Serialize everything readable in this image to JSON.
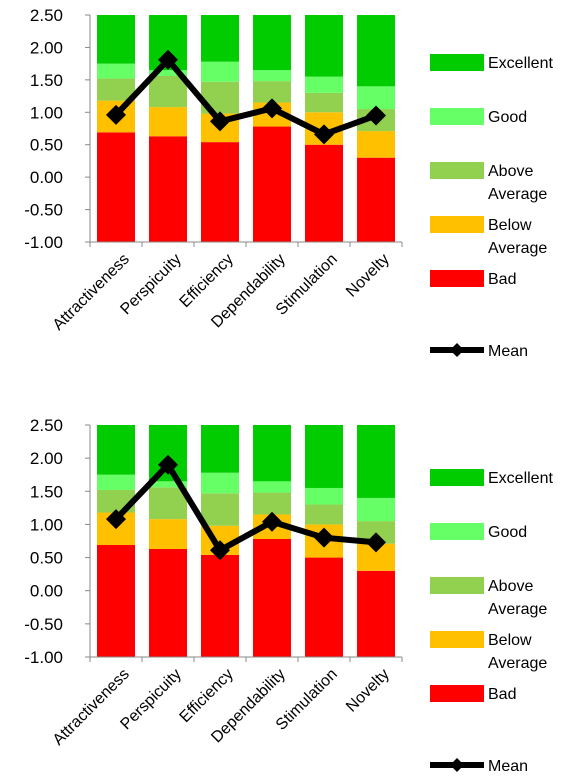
{
  "chart_data": [
    {
      "type": "bar",
      "subtype": "stacked-bar-with-line",
      "categories": [
        "Attractiveness",
        "Perspicuity",
        "Efficiency",
        "Dependability",
        "Stimulation",
        "Novelty"
      ],
      "ylim": [
        -1.0,
        2.5
      ],
      "yticks": [
        "2.50",
        "2.00",
        "1.50",
        "1.00",
        "0.50",
        "0.00",
        "-0.50",
        "-1.00"
      ],
      "grid": false,
      "legend_position": "right",
      "bands": [
        {
          "name": "Bad",
          "color": "#ff0000",
          "tops": [
            0.69,
            0.63,
            0.54,
            0.78,
            0.5,
            0.3
          ]
        },
        {
          "name": "Below Average",
          "label_lines": [
            "Below",
            "Average"
          ],
          "color": "#ffc000",
          "tops": [
            1.18,
            1.08,
            0.98,
            1.15,
            1.0,
            0.71
          ]
        },
        {
          "name": "Above Average",
          "label_lines": [
            "Above",
            "Average"
          ],
          "color": "#92d050",
          "tops": [
            1.52,
            1.56,
            1.47,
            1.48,
            1.3,
            1.05
          ]
        },
        {
          "name": "Good",
          "color": "#66ff66",
          "tops": [
            1.75,
            1.65,
            1.78,
            1.65,
            1.55,
            1.4
          ]
        },
        {
          "name": "Excellent",
          "color": "#00cc00",
          "tops": [
            2.5,
            2.5,
            2.5,
            2.5,
            2.5,
            2.5
          ]
        }
      ],
      "series": [
        {
          "name": "Mean",
          "color": "#000000",
          "values": [
            0.96,
            1.81,
            0.86,
            1.06,
            0.66,
            0.95
          ]
        }
      ]
    },
    {
      "type": "bar",
      "subtype": "stacked-bar-with-line",
      "categories": [
        "Attractiveness",
        "Perspicuity",
        "Efficiency",
        "Dependability",
        "Stimulation",
        "Novelty"
      ],
      "ylim": [
        -1.0,
        2.5
      ],
      "yticks": [
        "2.50",
        "2.00",
        "1.50",
        "1.00",
        "0.50",
        "0.00",
        "-0.50",
        "-1.00"
      ],
      "grid": false,
      "legend_position": "right",
      "bands": [
        {
          "name": "Bad",
          "color": "#ff0000",
          "tops": [
            0.69,
            0.63,
            0.54,
            0.78,
            0.5,
            0.3
          ]
        },
        {
          "name": "Below Average",
          "label_lines": [
            "Below",
            "Average"
          ],
          "color": "#ffc000",
          "tops": [
            1.18,
            1.08,
            0.98,
            1.15,
            1.0,
            0.71
          ]
        },
        {
          "name": "Above Average",
          "label_lines": [
            "Above",
            "Average"
          ],
          "color": "#92d050",
          "tops": [
            1.52,
            1.56,
            1.47,
            1.48,
            1.3,
            1.05
          ]
        },
        {
          "name": "Good",
          "color": "#66ff66",
          "tops": [
            1.75,
            1.65,
            1.78,
            1.65,
            1.55,
            1.4
          ]
        },
        {
          "name": "Excellent",
          "color": "#00cc00",
          "tops": [
            2.5,
            2.5,
            2.5,
            2.5,
            2.5,
            2.5
          ]
        }
      ],
      "series": [
        {
          "name": "Mean",
          "color": "#000000",
          "values": [
            1.08,
            1.9,
            0.61,
            1.04,
            0.8,
            0.73
          ]
        }
      ]
    }
  ]
}
